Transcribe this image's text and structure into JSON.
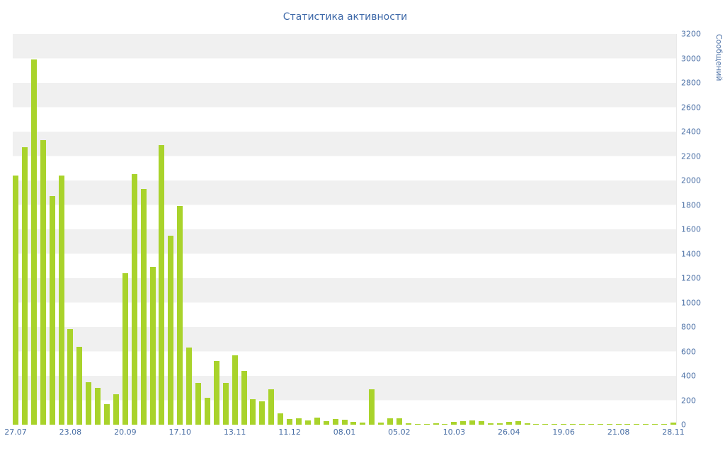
{
  "colors": {
    "bar": "#a9d32b",
    "band": "#f0f0f0",
    "text": "#4a6fa5",
    "title": "#3d68a8"
  },
  "chart_data": {
    "type": "bar",
    "title": "Статистика активности",
    "ylabel": "Сообщений",
    "xlabel": "",
    "ylim": [
      0,
      3200
    ],
    "y_tick_step": 200,
    "y_ticks": [
      0,
      200,
      400,
      600,
      800,
      1000,
      1200,
      1400,
      1600,
      1800,
      2000,
      2200,
      2400,
      2600,
      2800,
      3000,
      3200
    ],
    "x_tick_labels": [
      "27.07",
      "23.08",
      "20.09",
      "17.10",
      "13.11",
      "11.12",
      "08.01",
      "05.02",
      "10.03",
      "26.04",
      "19.06",
      "21.08",
      "28.11"
    ],
    "x_tick_every": 6,
    "grid": "horizontal-bands",
    "legend": "none",
    "values": [
      2040,
      2270,
      2990,
      2330,
      1870,
      2040,
      780,
      640,
      350,
      300,
      170,
      250,
      1240,
      2050,
      1930,
      1290,
      2290,
      1550,
      1790,
      630,
      340,
      220,
      520,
      345,
      570,
      440,
      210,
      190,
      290,
      90,
      45,
      55,
      35,
      60,
      30,
      45,
      40,
      25,
      15,
      290,
      15,
      50,
      55,
      10,
      8,
      6,
      10,
      8,
      22,
      28,
      32,
      30,
      12,
      10,
      25,
      30,
      10,
      8,
      6,
      5,
      6,
      8,
      5,
      4,
      5,
      4,
      5,
      4,
      6,
      4,
      5,
      8,
      20
    ]
  }
}
